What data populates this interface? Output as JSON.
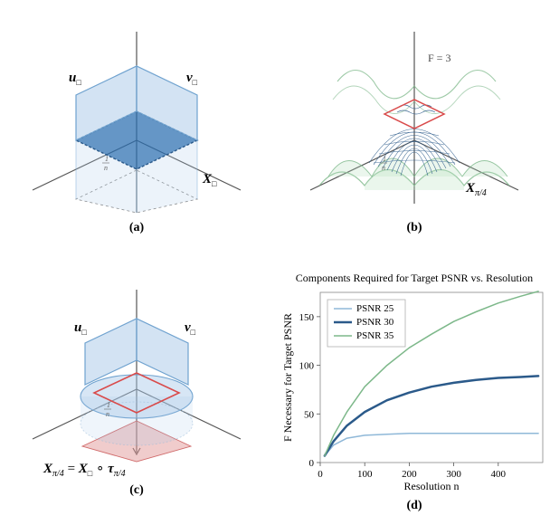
{
  "panels": {
    "a": {
      "label": "(a)"
    },
    "b": {
      "label": "(b)",
      "F_label": "F = 3"
    },
    "c": {
      "label": "(c)"
    },
    "d": {
      "label": "(d)"
    }
  },
  "labels": {
    "u": "u",
    "v": "v",
    "X": "X",
    "subscript_box": "□",
    "subscript_pi4": "π/4",
    "tau": "τ",
    "one_over_n": "1/n",
    "compose": "∘",
    "equals": "="
  },
  "colors": {
    "blue_fill": "#a7c8e8",
    "blue_fill_light": "#c5dcf0",
    "blue_stroke": "#2a6db0",
    "dark_blue": "#2b5a8a",
    "red_stroke": "#d94a4a",
    "red_fill": "#e8b8b8",
    "green_surface": "#7db88a",
    "green_fill_light": "#b8e0c0",
    "axis_stroke": "#555555",
    "grid_color": "#e0e0e0",
    "psnr25": "#8fb8d8",
    "psnr30": "#2b5a8a",
    "psnr35": "#7db88a",
    "text": "#000000",
    "background": "#ffffff"
  },
  "diagram_style": {
    "axis_stroke_width": 1.2,
    "outline_stroke_width": 1.3,
    "plane_opacity": 0.55,
    "slab_opacity": 0.35
  },
  "chart_d": {
    "type": "line",
    "title": "Components Required for Target PSNR vs. Resolution",
    "xlabel": "Resolution n",
    "ylabel": "F Necessary for Target PSNR",
    "xlim": [
      0,
      500
    ],
    "ylim": [
      0,
      175
    ],
    "xticks": [
      0,
      100,
      200,
      300,
      400
    ],
    "yticks": [
      0,
      50,
      100,
      150
    ],
    "grid_color": "#f0f0f0",
    "background_color": "#ffffff",
    "line_width_thin": 1.5,
    "line_width_thick": 2.5,
    "legend_position": "top-left",
    "series": [
      {
        "name": "PSNR 25",
        "color": "#8fb8d8",
        "width": 1.5,
        "x": [
          10,
          30,
          60,
          100,
          150,
          200,
          250,
          300,
          350,
          400,
          450,
          490
        ],
        "y": [
          7,
          18,
          25,
          28,
          29,
          30,
          30,
          30,
          30,
          30,
          30,
          30
        ]
      },
      {
        "name": "PSNR 30",
        "color": "#2b5a8a",
        "width": 2.5,
        "x": [
          10,
          30,
          60,
          100,
          150,
          200,
          250,
          300,
          350,
          400,
          450,
          490
        ],
        "y": [
          7,
          22,
          38,
          52,
          64,
          72,
          78,
          82,
          85,
          87,
          88,
          89
        ]
      },
      {
        "name": "PSNR 35",
        "color": "#7db88a",
        "width": 1.5,
        "x": [
          10,
          30,
          60,
          100,
          150,
          200,
          250,
          300,
          350,
          400,
          450,
          490
        ],
        "y": [
          7,
          28,
          52,
          78,
          100,
          118,
          132,
          145,
          155,
          164,
          171,
          176
        ]
      }
    ]
  }
}
